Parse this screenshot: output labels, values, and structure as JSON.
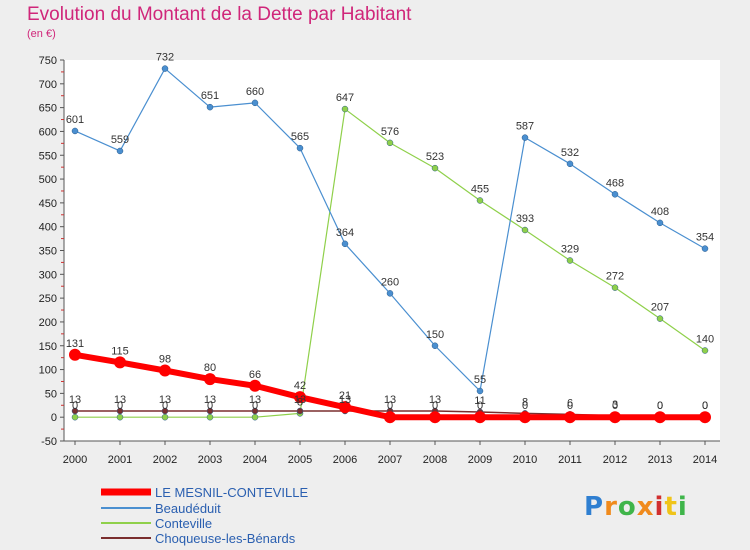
{
  "chart_data": {
    "type": "line",
    "title": "Evolution du Montant de la Dette par Habitant",
    "subtitle": "(en €)",
    "xlabel": "",
    "ylabel": "",
    "x": [
      2000,
      2001,
      2002,
      2003,
      2004,
      2005,
      2006,
      2007,
      2008,
      2009,
      2010,
      2011,
      2012,
      2013,
      2014
    ],
    "ylim": [
      -50,
      750
    ],
    "yticks": [
      -50,
      0,
      50,
      100,
      150,
      200,
      250,
      300,
      350,
      400,
      450,
      500,
      550,
      600,
      650,
      700,
      750
    ],
    "grid": false,
    "legend_position": "bottom-left",
    "series": [
      {
        "name": "LE MESNIL-CONTEVILLE",
        "color": "#ff0000",
        "values": [
          131,
          115,
          98,
          80,
          66,
          42,
          21,
          0,
          0,
          0,
          0,
          0,
          0,
          0,
          0
        ]
      },
      {
        "name": "Beaudéduit",
        "color": "#4a8fd0",
        "values": [
          601,
          559,
          732,
          651,
          660,
          565,
          364,
          260,
          150,
          55,
          587,
          532,
          468,
          408,
          354
        ]
      },
      {
        "name": "Conteville",
        "color": "#8fd04a",
        "values": [
          0,
          0,
          0,
          0,
          0,
          8,
          647,
          576,
          523,
          455,
          393,
          329,
          272,
          207,
          140
        ]
      },
      {
        "name": "Choqueuse-les-Bénards",
        "color": "#7a2e2e",
        "values": [
          13,
          13,
          13,
          13,
          13,
          13,
          13,
          13,
          13,
          11,
          8,
          6,
          3,
          0,
          0
        ]
      }
    ]
  },
  "brand": {
    "letters": [
      "P",
      "r",
      "o",
      "x",
      "i",
      "t",
      "i"
    ],
    "colors": [
      "#2f7fd1",
      "#f08a1c",
      "#3fb54a",
      "#f08a1c",
      "#d12f2f",
      "#f0c419",
      "#3fb54a"
    ]
  }
}
